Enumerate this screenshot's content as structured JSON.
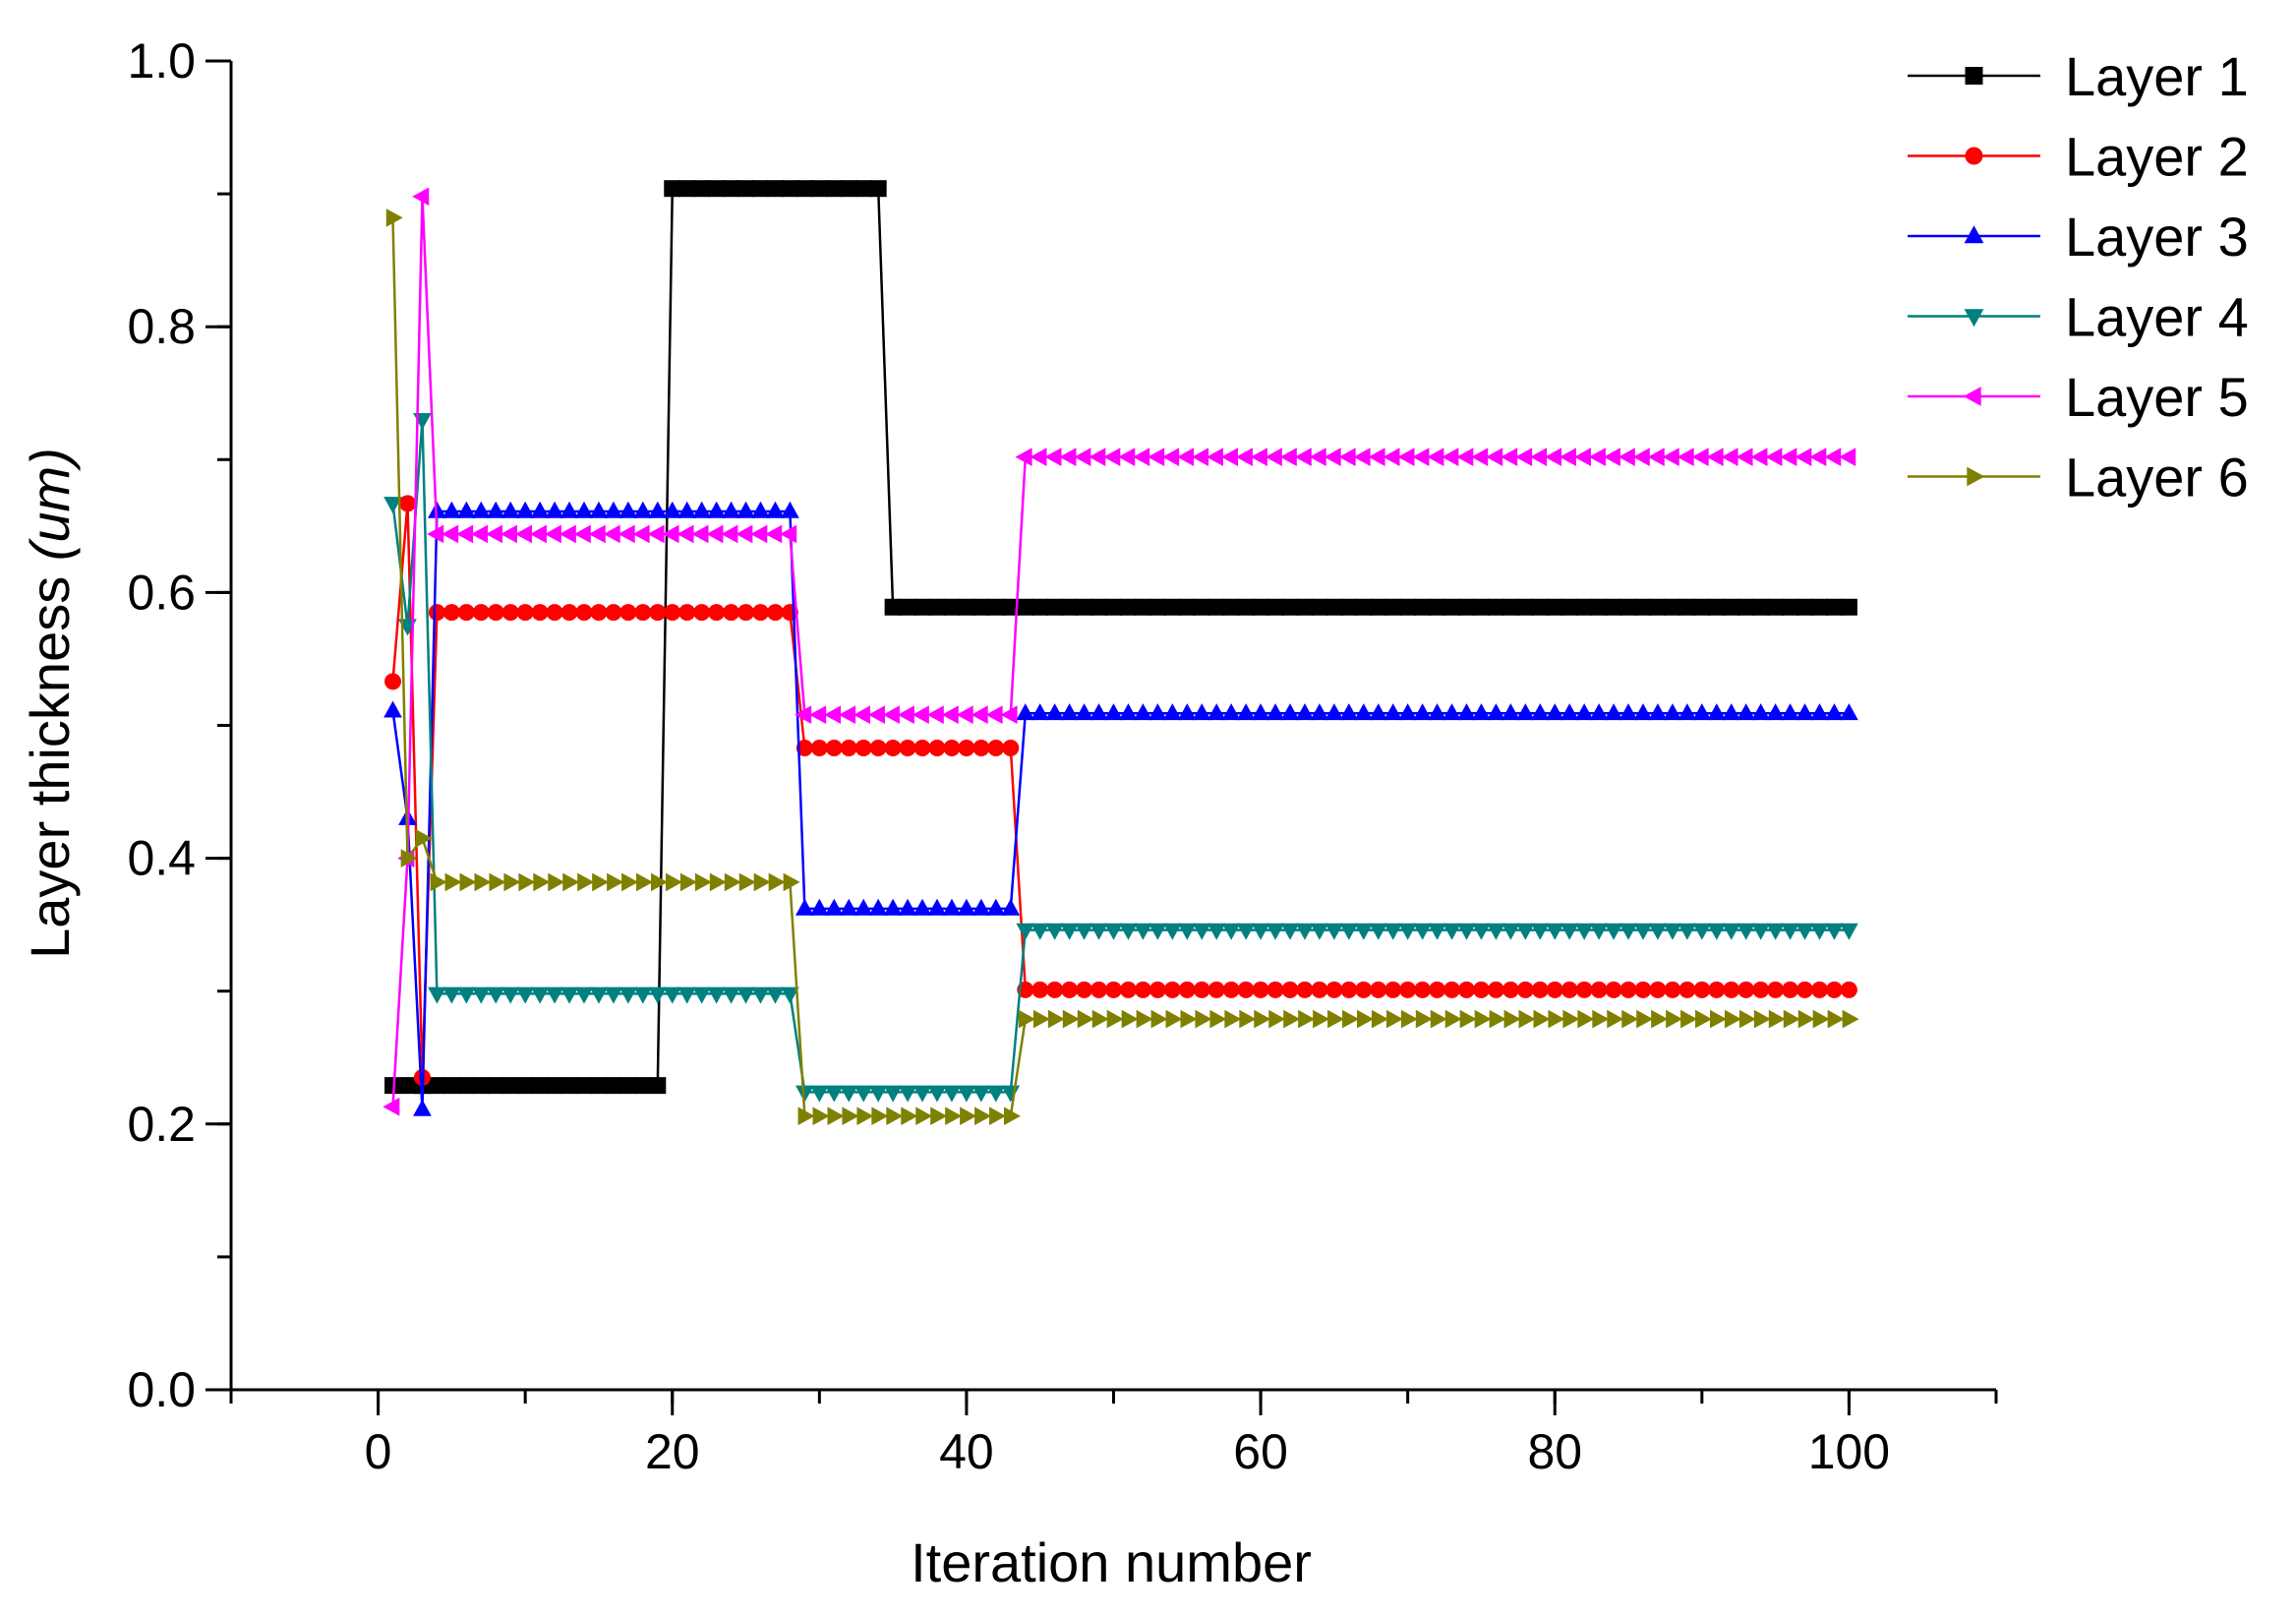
{
  "chart_data": {
    "type": "line",
    "title": "",
    "xlabel": "Iteration number",
    "ylabel_main": "Layer thickness ",
    "ylabel_unit": "(um)",
    "xlim": [
      -10,
      110
    ],
    "ylim": [
      0.0,
      1.0
    ],
    "x_ticks": [
      0,
      20,
      40,
      60,
      80,
      100
    ],
    "x_tick_labels": [
      "0",
      "20",
      "40",
      "60",
      "80",
      "100"
    ],
    "x_minor_step": 10,
    "y_ticks": [
      0.0,
      0.2,
      0.4,
      0.6,
      0.8,
      1.0
    ],
    "y_tick_labels": [
      "0.0",
      "0.2",
      "0.4",
      "0.6",
      "0.8",
      "1.0"
    ],
    "y_minor_step": 0.1,
    "grid": false,
    "legend_position": "top-right",
    "series": [
      {
        "name": "Layer 1",
        "color": "#000000",
        "marker": "square",
        "segments": [
          [
            1,
            3,
            0.229
          ],
          [
            3,
            19,
            0.229
          ],
          [
            20,
            34,
            0.904
          ],
          [
            35,
            100,
            0.589
          ]
        ]
      },
      {
        "name": "Layer 2",
        "color": "#ff0000",
        "marker": "circle",
        "segments": [
          [
            1,
            1,
            0.533
          ],
          [
            2,
            2,
            0.667
          ],
          [
            3,
            3,
            0.235
          ],
          [
            4,
            28,
            0.585
          ],
          [
            29,
            43,
            0.483
          ],
          [
            44,
            100,
            0.301
          ]
        ]
      },
      {
        "name": "Layer 3",
        "color": "#0000ff",
        "marker": "triangle-up",
        "segments": [
          [
            1,
            1,
            0.511
          ],
          [
            2,
            2,
            0.43
          ],
          [
            3,
            3,
            0.211
          ],
          [
            4,
            28,
            0.661
          ],
          [
            29,
            43,
            0.362
          ],
          [
            44,
            100,
            0.509
          ]
        ]
      },
      {
        "name": "Layer 4",
        "color": "#008080",
        "marker": "triangle-down",
        "segments": [
          [
            1,
            1,
            0.667
          ],
          [
            2,
            2,
            0.575
          ],
          [
            3,
            3,
            0.73
          ],
          [
            4,
            28,
            0.298
          ],
          [
            29,
            43,
            0.224
          ],
          [
            44,
            100,
            0.346
          ]
        ]
      },
      {
        "name": "Layer 5",
        "color": "#ff00ff",
        "marker": "triangle-left",
        "segments": [
          [
            1,
            1,
            0.213
          ],
          [
            2,
            2,
            0.4
          ],
          [
            3,
            3,
            0.898
          ],
          [
            4,
            28,
            0.644
          ],
          [
            29,
            43,
            0.508
          ],
          [
            44,
            100,
            0.702
          ]
        ]
      },
      {
        "name": "Layer 6",
        "color": "#808000",
        "marker": "triangle-right",
        "segments": [
          [
            1,
            1,
            0.882
          ],
          [
            2,
            2,
            0.4
          ],
          [
            3,
            3,
            0.415
          ],
          [
            4,
            28,
            0.382
          ],
          [
            29,
            43,
            0.206
          ],
          [
            44,
            100,
            0.279
          ]
        ]
      }
    ]
  }
}
